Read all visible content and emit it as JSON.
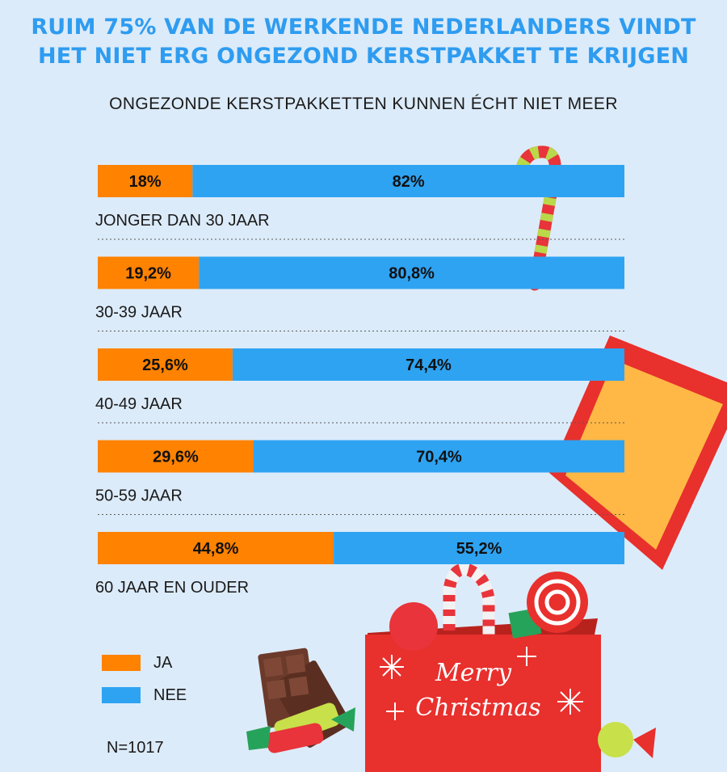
{
  "title_lines": [
    "RUIM 75% VAN DE WERKENDE NEDERLANDERS VINDT",
    "HET NIET ERG ONGEZOND KERSTPAKKET TE KRIJGEN"
  ],
  "subtitle": "ONGEZONDE KERSTPAKKETTEN KUNNEN ÉCHT NIET MEER",
  "colors": {
    "ja": "#ff8200",
    "nee": "#2ea3f2",
    "title": "#2e9cf0",
    "background": "#dcebf9"
  },
  "chart_data": {
    "type": "bar",
    "orientation": "horizontal",
    "stacked": true,
    "percent_stacked": true,
    "categories": [
      "JONGER DAN 30 JAAR",
      "30-39 JAAR",
      "40-49 JAAR",
      "50-59 JAAR",
      "60 JAAR EN OUDER"
    ],
    "series": [
      {
        "name": "JA",
        "values": [
          18,
          19.2,
          25.6,
          29.6,
          44.8
        ],
        "labels": [
          "18%",
          "19,2%",
          "25,6%",
          "29,6%",
          "44,8%"
        ]
      },
      {
        "name": "NEE",
        "values": [
          82,
          80.8,
          74.4,
          70.4,
          55.2
        ],
        "labels": [
          "82%",
          "80,8%",
          "74,4%",
          "70,4%",
          "55,2%"
        ]
      }
    ],
    "xlim": [
      0,
      100
    ],
    "legend_position": "bottom-left"
  },
  "legend": [
    {
      "label": "JA",
      "color": "#ff8200"
    },
    {
      "label": "NEE",
      "color": "#2ea3f2"
    }
  ],
  "n_note": "N=1017",
  "box_text_lines": [
    "Merry",
    "Christmas"
  ],
  "decorations": [
    "candy-cane-icon",
    "gift-box-lid-icon",
    "gift-box-icon",
    "lollipop-icon",
    "chocolate-bar-icon",
    "wrapped-candy-icon"
  ]
}
